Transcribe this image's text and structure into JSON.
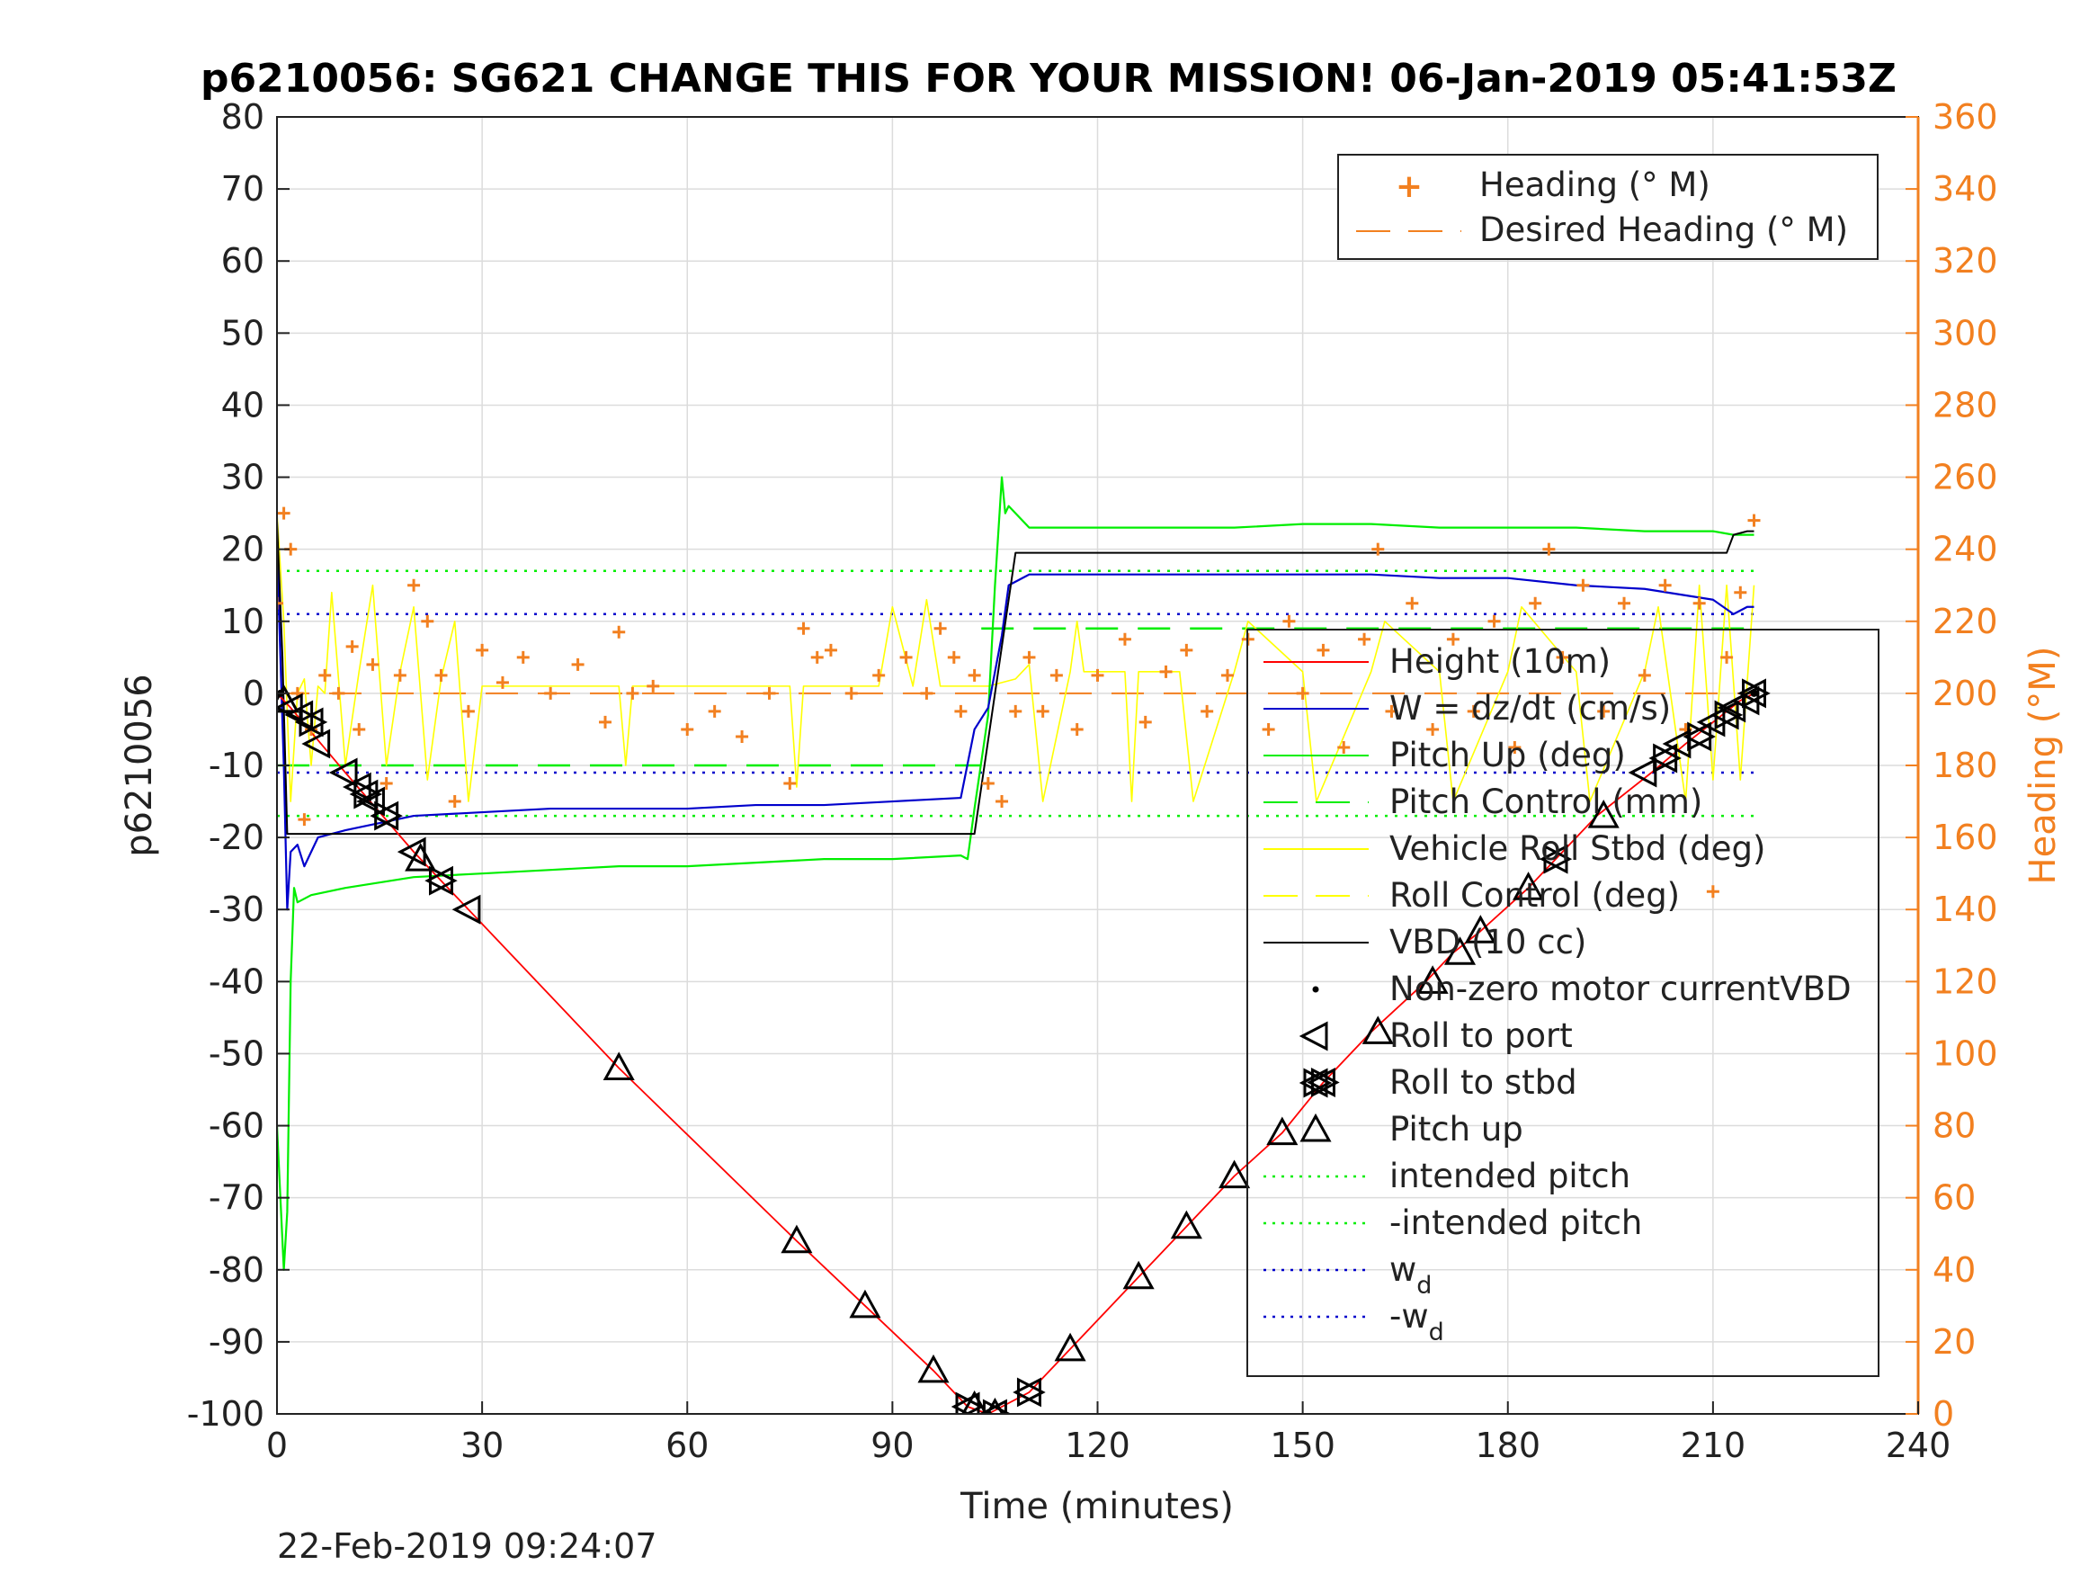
{
  "chart_data": {
    "type": "line",
    "title": "p6210056: SG621 CHANGE THIS FOR YOUR MISSION! 06-Jan-2019 05:41:53Z",
    "xlabel": "Time (minutes)",
    "ylabel": "p6210056",
    "y2label": "Heading (°M)",
    "footer": "22-Feb-2019 09:24:07",
    "xlim": [
      0,
      240
    ],
    "ylim": [
      -100,
      80
    ],
    "y2lim": [
      0,
      360
    ],
    "xticks": [
      "0",
      "30",
      "60",
      "90",
      "120",
      "150",
      "180",
      "210",
      "240"
    ],
    "yticks": [
      "80",
      "70",
      "60",
      "50",
      "40",
      "30",
      "20",
      "10",
      "0",
      "-10",
      "-20",
      "-30",
      "-40",
      "-50",
      "-60",
      "-70",
      "-80",
      "-90",
      "-100"
    ],
    "y2ticks": [
      "360",
      "340",
      "320",
      "300",
      "280",
      "260",
      "240",
      "220",
      "200",
      "180",
      "160",
      "140",
      "120",
      "100",
      "80",
      "60",
      "40",
      "20",
      "0"
    ],
    "grid": true,
    "colors": {
      "height": "#ff0000",
      "w": "#0000cc",
      "pitch": "#00ee00",
      "roll": "#ffff00",
      "vbd": "#000000",
      "heading": "#f28020"
    },
    "legend_top": {
      "placement": "top-right",
      "entries": [
        "Heading (° M)",
        "Desired Heading (° M)"
      ]
    },
    "legend_main": {
      "placement": "center-right",
      "entries": [
        "Height (10m)",
        "W = dz/dt (cm/s)",
        "Pitch Up (deg)",
        "Pitch Control (mm)",
        "Vehicle Roll Stbd (deg)",
        "Roll Control (deg)",
        "VBD (10 cc)",
        "Non-zero motor currentVBD",
        "Roll to port",
        "Roll to stbd",
        "Pitch up",
        "intended pitch",
        "-intended pitch",
        "w",
        "-w"
      ],
      "subscript": "d"
    },
    "reference_lines": {
      "intended_pitch": 17,
      "neg_intended_pitch": -17,
      "w_d": 11,
      "neg_w_d": -11,
      "pitch_control_dive": -10,
      "pitch_control_climb": 9
    },
    "series": [
      {
        "name": "Height (10m)",
        "x": [
          0,
          2,
          10,
          20,
          28,
          50,
          76,
          86,
          96,
          101,
          104,
          106,
          110,
          116,
          126,
          133,
          140,
          147,
          153,
          160,
          168,
          172,
          176,
          183,
          187,
          193,
          201,
          206,
          210,
          214,
          216
        ],
        "values": [
          0,
          -2,
          -11,
          -22,
          -30,
          -52,
          -76,
          -85,
          -94,
          -99,
          -100,
          -99,
          -97,
          -91,
          -81,
          -74,
          -67,
          -61,
          -54,
          -47,
          -40,
          -36,
          -33,
          -27,
          -23,
          -17,
          -11,
          -7,
          -4,
          -1,
          0
        ]
      },
      {
        "name": "W = dz/dt (cm/s)",
        "x": [
          0,
          1,
          1.5,
          2,
          3,
          4,
          6,
          10,
          15,
          20,
          30,
          40,
          50,
          60,
          70,
          80,
          90,
          100,
          102,
          104,
          106,
          107,
          110,
          120,
          130,
          140,
          150,
          160,
          170,
          180,
          190,
          200,
          210,
          213,
          215,
          216
        ],
        "values": [
          20,
          -10,
          -30,
          -22,
          -21,
          -24,
          -20,
          -19,
          -18,
          -17,
          -16.5,
          -16,
          -16,
          -16,
          -15.5,
          -15.5,
          -15,
          -14.5,
          -5,
          -2,
          8,
          15,
          16.5,
          16.5,
          16.5,
          16.5,
          16.5,
          16.5,
          16,
          16,
          15,
          14.5,
          13,
          11,
          12,
          12
        ]
      },
      {
        "name": "Pitch Up (deg)",
        "x": [
          0,
          0.5,
          1,
          1.5,
          2,
          2.5,
          3,
          5,
          10,
          20,
          30,
          40,
          50,
          60,
          70,
          80,
          90,
          100,
          101,
          102,
          104,
          105,
          106,
          106.5,
          107,
          108,
          110,
          120,
          130,
          140,
          150,
          160,
          170,
          180,
          190,
          200,
          210,
          213,
          215,
          216
        ],
        "values": [
          -60,
          -70,
          -80,
          -72,
          -40,
          -27,
          -29,
          -28,
          -27,
          -25.5,
          -25,
          -24.5,
          -24,
          -24,
          -23.5,
          -23,
          -23,
          -22.5,
          -23,
          -16,
          -3,
          15,
          30,
          25,
          26,
          25,
          23,
          23,
          23,
          23,
          23.5,
          23.5,
          23,
          23,
          23,
          22.5,
          22.5,
          22,
          22,
          22
        ]
      },
      {
        "name": "Vehicle Roll Stbd (deg)",
        "x": [
          0,
          1,
          2,
          3,
          4,
          5,
          6,
          7,
          8,
          10,
          12,
          14,
          16,
          18,
          20,
          22,
          24,
          26,
          28,
          30,
          40,
          50,
          51,
          52,
          60,
          70,
          75,
          76,
          77,
          80,
          88,
          90,
          93,
          95,
          97,
          100,
          104,
          108,
          110,
          112,
          116,
          117,
          118,
          124,
          125,
          126,
          132,
          134,
          140,
          142,
          150,
          152,
          160,
          162,
          170,
          172,
          180,
          182,
          190,
          192,
          200,
          202,
          206,
          208,
          210,
          212,
          214,
          216
        ],
        "values": [
          25,
          10,
          -15,
          0,
          2,
          -10,
          1,
          0,
          14,
          -10,
          3,
          15,
          -10,
          3,
          12,
          -12,
          2,
          10,
          -15,
          1,
          1,
          1,
          -10,
          1,
          1,
          1,
          1,
          -13,
          1,
          1,
          1,
          12,
          1,
          13,
          1,
          1,
          1,
          2,
          4,
          -15,
          3,
          10,
          3,
          3,
          -15,
          3,
          3,
          -15,
          3,
          10,
          3,
          -15,
          3,
          10,
          3,
          -15,
          3,
          12,
          3,
          -15,
          3,
          12,
          -15,
          15,
          -12,
          15,
          -12,
          15
        ]
      },
      {
        "name": "VBD (10 cc)",
        "x": [
          0,
          0.8,
          1.5,
          30,
          60,
          90,
          102,
          108,
          110,
          150,
          180,
          210,
          212,
          213,
          215,
          216
        ],
        "values": [
          24,
          5,
          -19.5,
          -19.5,
          -19.5,
          -19.5,
          -19.5,
          19.5,
          19.5,
          19.5,
          19.5,
          19.5,
          19.5,
          22,
          22.5,
          22.5
        ]
      },
      {
        "name": "Heading (° M)",
        "x": [
          0,
          1,
          2,
          3,
          4,
          5,
          7,
          9,
          11,
          12,
          14,
          16,
          18,
          20,
          22,
          24,
          26,
          28,
          30,
          33,
          36,
          40,
          44,
          48,
          50,
          52,
          55,
          60,
          64,
          68,
          72,
          75,
          77,
          79,
          81,
          84,
          88,
          92,
          95,
          97,
          99,
          100,
          102,
          104,
          106,
          108,
          110,
          112,
          114,
          117,
          120,
          124,
          127,
          130,
          133,
          136,
          139,
          142,
          145,
          148,
          150,
          153,
          156,
          159,
          161,
          163,
          166,
          169,
          172,
          175,
          178,
          181,
          184,
          186,
          188,
          191,
          194,
          197,
          200,
          203,
          206,
          208,
          210,
          212,
          214,
          216
        ],
        "values": [
          225,
          250,
          240,
          200,
          165,
          190,
          205,
          200,
          213,
          190,
          208,
          175,
          205,
          230,
          220,
          205,
          170,
          195,
          212,
          203,
          210,
          200,
          208,
          192,
          217,
          200,
          202,
          190,
          195,
          188,
          200,
          175,
          218,
          210,
          212,
          200,
          205,
          210,
          200,
          218,
          210,
          195,
          205,
          175,
          170,
          195,
          210,
          195,
          205,
          190,
          205,
          215,
          192,
          206,
          212,
          195,
          205,
          215,
          190,
          220,
          200,
          212,
          185,
          215,
          240,
          195,
          225,
          190,
          215,
          195,
          220,
          185,
          225,
          240,
          210,
          230,
          195,
          225,
          205,
          230,
          190,
          225,
          145,
          210,
          228,
          248
        ]
      },
      {
        "name": "Desired Heading (° M)",
        "x": [
          0,
          103,
          104,
          216
        ],
        "values": [
          200,
          200,
          200,
          200
        ]
      }
    ],
    "markers": {
      "roll_to_port": {
        "x": [
          2,
          3.5,
          6,
          10,
          12,
          14,
          20,
          28,
          200,
          205,
          210,
          213,
          215
        ],
        "values": [
          -2,
          -3,
          -7,
          -11,
          -13,
          -15,
          -22,
          -30,
          -11,
          -7,
          -4,
          -2,
          -1
        ]
      },
      "roll_to_stbd": {
        "x": [
          5,
          13,
          16,
          24,
          101,
          105,
          110,
          153,
          187,
          203,
          208,
          212,
          216
        ],
        "values": [
          -4,
          -14,
          -17,
          -26,
          -99,
          -100,
          -97,
          -54,
          -23,
          -9,
          -6,
          -3,
          0
        ]
      },
      "pitch_up": {
        "x": [
          1,
          21,
          50,
          76,
          86,
          96,
          102,
          105,
          116,
          126,
          133,
          140,
          147,
          161,
          169,
          173,
          176,
          183,
          194
        ],
        "values": [
          -1,
          -23,
          -52,
          -76,
          -85,
          -94,
          -99,
          -100,
          -91,
          -81,
          -74,
          -67,
          -61,
          -47,
          -40,
          -36,
          -33,
          -27,
          -17
        ]
      },
      "motor_current_vbd": {
        "x": [
          0.5,
          104,
          216
        ],
        "values": [
          0,
          -100,
          0
        ]
      }
    }
  }
}
